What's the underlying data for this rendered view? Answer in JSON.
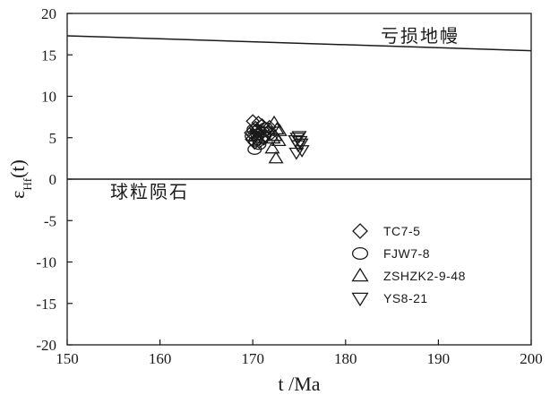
{
  "chart_data": {
    "type": "scatter",
    "xlabel": "t /Ma",
    "ylabel": {
      "main": "ε",
      "sub": "Hf",
      "suffix": "(t)"
    },
    "xlim": [
      150,
      200
    ],
    "ylim": [
      -20,
      20
    ],
    "x_ticks": [
      150,
      160,
      170,
      180,
      190,
      200
    ],
    "y_ticks": [
      20,
      15,
      10,
      5,
      0,
      -5,
      -10,
      -15,
      -20
    ],
    "grid": false,
    "legend_position": "lower-right",
    "reference_lines": [
      {
        "label": "亏损地幔",
        "points": [
          [
            150,
            17.3
          ],
          [
            200,
            15.5
          ]
        ]
      },
      {
        "label": "球粒陨石",
        "points": [
          [
            150,
            0
          ],
          [
            200,
            0
          ]
        ]
      }
    ],
    "series": [
      {
        "name": "TC7-5",
        "marker": "diamond",
        "points": [
          [
            170.0,
            7.0
          ],
          [
            170.3,
            6.2
          ],
          [
            169.8,
            5.6
          ],
          [
            170.5,
            5.0
          ],
          [
            170.2,
            4.4
          ],
          [
            171.0,
            6.5
          ],
          [
            170.8,
            5.8
          ],
          [
            171.3,
            5.2
          ],
          [
            169.9,
            4.8
          ],
          [
            170.6,
            6.8
          ],
          [
            171.5,
            6.0
          ],
          [
            170.1,
            5.3
          ],
          [
            172.0,
            5.5
          ],
          [
            171.8,
            6.3
          ],
          [
            170.4,
            5.9
          ],
          [
            171.2,
            4.9
          ],
          [
            170.7,
            4.5
          ],
          [
            171.6,
            5.7
          ]
        ]
      },
      {
        "name": "FJW7-8",
        "marker": "circle",
        "points": [
          [
            170.1,
            6.0
          ],
          [
            170.5,
            5.4
          ],
          [
            170.3,
            4.6
          ],
          [
            170.9,
            5.0
          ],
          [
            170.2,
            3.6
          ],
          [
            171.1,
            5.7
          ],
          [
            169.9,
            5.2
          ],
          [
            170.7,
            4.2
          ],
          [
            171.4,
            6.2
          ],
          [
            170.6,
            5.9
          ]
        ]
      },
      {
        "name": "ZSHZK2-9-48",
        "marker": "triangle-up",
        "points": [
          [
            172.3,
            6.8
          ],
          [
            172.6,
            6.0
          ],
          [
            172.4,
            5.2
          ],
          [
            172.8,
            4.6
          ],
          [
            172.1,
            3.7
          ],
          [
            172.5,
            2.5
          ],
          [
            172.9,
            5.8
          ],
          [
            172.2,
            4.9
          ]
        ]
      },
      {
        "name": "YS8-21",
        "marker": "triangle-down",
        "points": [
          [
            174.8,
            5.0
          ],
          [
            175.1,
            4.6
          ],
          [
            174.9,
            4.1
          ],
          [
            175.3,
            3.5
          ],
          [
            174.7,
            3.2
          ],
          [
            175.0,
            5.2
          ],
          [
            175.2,
            4.3
          ],
          [
            174.6,
            4.7
          ]
        ]
      }
    ]
  }
}
